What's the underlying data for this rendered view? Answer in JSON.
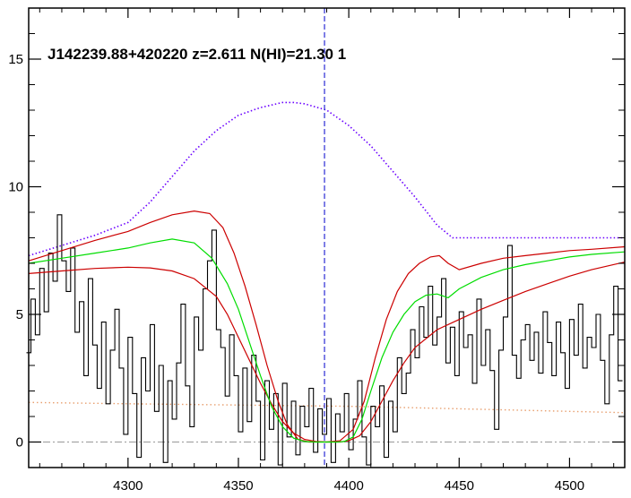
{
  "chart_data": {
    "type": "line",
    "title": "J142239.88+420220 z=2.611 N(HI)=21.30 1",
    "xlabel": "",
    "ylabel": "",
    "xlim": [
      4255,
      4525
    ],
    "ylim": [
      -1,
      17
    ],
    "grid": false,
    "x_ticks": [
      4300,
      4350,
      4400,
      4450,
      4500
    ],
    "y_ticks": [
      0,
      5,
      10,
      15
    ],
    "line_center": 4389,
    "colors": {
      "flux": "#000000",
      "model": "#00dd00",
      "model_bounds": "#cc0000",
      "continuum": "#6a00ff",
      "error": "#e8a070",
      "center": "#0000cc",
      "zero": "#999999"
    },
    "series": [
      {
        "kind": "flux",
        "x": [
          4255,
          4257,
          4259,
          4261,
          4263,
          4265,
          4267,
          4269,
          4271,
          4273,
          4275,
          4277,
          4279,
          4281,
          4283,
          4285,
          4287,
          4289,
          4291,
          4293,
          4295,
          4297,
          4299,
          4301,
          4303,
          4305,
          4307,
          4309,
          4311,
          4313,
          4315,
          4317,
          4319,
          4321,
          4323,
          4325,
          4327,
          4329,
          4331,
          4333,
          4335,
          4337,
          4339,
          4341,
          4343,
          4345,
          4347,
          4349,
          4351,
          4353,
          4355,
          4357,
          4359,
          4361,
          4363,
          4365,
          4367,
          4369,
          4371,
          4373,
          4375,
          4377,
          4379,
          4381,
          4383,
          4385,
          4387,
          4389,
          4391,
          4393,
          4395,
          4397,
          4399,
          4401,
          4403,
          4405,
          4407,
          4409,
          4411,
          4413,
          4415,
          4417,
          4419,
          4421,
          4423,
          4425,
          4427,
          4429,
          4431,
          4433,
          4435,
          4437,
          4439,
          4441,
          4443,
          4445,
          4447,
          4449,
          4451,
          4453,
          4455,
          4457,
          4459,
          4461,
          4463,
          4465,
          4467,
          4469,
          4471,
          4473,
          4475,
          4477,
          4479,
          4481,
          4483,
          4485,
          4487,
          4489,
          4491,
          4493,
          4495,
          4497,
          4499,
          4501,
          4503,
          4505,
          4507,
          4509,
          4511,
          4513,
          4515,
          4517,
          4519,
          4521,
          4523
        ],
        "y": [
          3.5,
          5.6,
          4.2,
          6.8,
          5.1,
          7.4,
          6.3,
          8.9,
          7.1,
          5.9,
          7.6,
          4.3,
          5.5,
          2.6,
          6.4,
          3.8,
          2.1,
          4.7,
          1.5,
          3.6,
          5.2,
          2.9,
          0.3,
          4.1,
          1.9,
          -0.6,
          3.3,
          2.0,
          4.6,
          1.2,
          3.0,
          -0.8,
          2.4,
          0.9,
          3.1,
          5.4,
          2.2,
          0.6,
          4.9,
          3.6,
          6.0,
          7.1,
          8.3,
          4.4,
          3.7,
          1.8,
          4.2,
          2.6,
          0.4,
          2.9,
          0.8,
          3.4,
          1.6,
          -0.7,
          2.4,
          0.5,
          1.9,
          -0.9,
          2.3,
          0.2,
          1.6,
          -0.5,
          1.4,
          0.6,
          2.1,
          -0.4,
          1.3,
          0.3,
          1.7,
          -0.8,
          1.1,
          0.4,
          1.9,
          -0.3,
          0.9,
          2.4,
          0.2,
          -0.9,
          1.4,
          0.6,
          2.2,
          -0.6,
          1.6,
          0.4,
          3.3,
          1.9,
          2.7,
          4.4,
          3.3,
          5.3,
          4.1,
          6.1,
          3.8,
          4.9,
          6.4,
          3.1,
          4.5,
          2.6,
          5.1,
          3.7,
          4.2,
          2.3,
          5.6,
          3.0,
          4.4,
          2.8,
          0.5,
          3.6,
          4.9,
          7.7,
          3.4,
          2.5,
          4.0,
          4.6,
          3.2,
          4.3,
          2.7,
          5.1,
          3.9,
          2.6,
          4.7,
          3.5,
          2.1,
          4.8,
          3.4,
          5.4,
          2.9,
          4.1,
          3.7,
          5.0,
          3.2,
          1.5,
          4.2,
          6.1,
          2.4
        ]
      },
      {
        "kind": "model",
        "x": [
          4255,
          4270,
          4285,
          4300,
          4310,
          4320,
          4330,
          4338,
          4345,
          4350,
          4355,
          4360,
          4365,
          4370,
          4375,
          4380,
          4385,
          4390,
          4395,
          4398,
          4402,
          4406,
          4410,
          4415,
          4420,
          4425,
          4430,
          4435,
          4440,
          4445,
          4450,
          4460,
          4470,
          4480,
          4490,
          4500,
          4510,
          4525
        ],
        "y": [
          7.0,
          7.2,
          7.4,
          7.6,
          7.8,
          7.95,
          7.8,
          7.2,
          6.2,
          5.2,
          3.9,
          2.6,
          1.4,
          0.6,
          0.15,
          0.02,
          0.0,
          0.0,
          0.0,
          0.02,
          0.2,
          0.9,
          2.0,
          3.3,
          4.3,
          5.0,
          5.5,
          5.75,
          5.8,
          5.65,
          6.0,
          6.45,
          6.75,
          6.95,
          7.1,
          7.25,
          7.35,
          7.45
        ]
      },
      {
        "kind": "model_bounds",
        "x": [
          4255,
          4270,
          4285,
          4300,
          4310,
          4320,
          4330,
          4337,
          4343,
          4348,
          4353,
          4358,
          4363,
          4368,
          4372,
          4377,
          4382,
          4390,
          4396,
          4402,
          4407,
          4412,
          4417,
          4422,
          4427,
          4432,
          4437,
          4441,
          4445,
          4450,
          4460,
          4470,
          4480,
          4490,
          4500,
          4510,
          4525
        ],
        "y": [
          7.1,
          7.5,
          7.9,
          8.25,
          8.6,
          8.9,
          9.05,
          8.95,
          8.4,
          7.4,
          6.1,
          4.6,
          3.0,
          1.6,
          0.7,
          0.1,
          0.0,
          0.0,
          0.05,
          0.5,
          1.6,
          3.3,
          4.8,
          5.9,
          6.6,
          7.0,
          7.25,
          7.3,
          7.0,
          6.75,
          7.0,
          7.2,
          7.3,
          7.4,
          7.5,
          7.55,
          7.65
        ]
      },
      {
        "kind": "model_bounds",
        "x": [
          4255,
          4270,
          4285,
          4300,
          4310,
          4320,
          4330,
          4340,
          4345,
          4350,
          4355,
          4360,
          4365,
          4370,
          4375,
          4380,
          4385,
          4390,
          4396,
          4400,
          4405,
          4410,
          4415,
          4420,
          4425,
          4430,
          4440,
          4450,
          4460,
          4470,
          4480,
          4490,
          4500,
          4510,
          4525
        ],
        "y": [
          6.6,
          6.7,
          6.8,
          6.85,
          6.82,
          6.7,
          6.4,
          5.7,
          5.0,
          4.1,
          3.2,
          2.3,
          1.5,
          0.8,
          0.35,
          0.1,
          0.02,
          0.0,
          0.0,
          0.05,
          0.25,
          0.8,
          1.6,
          2.4,
          3.1,
          3.7,
          4.4,
          4.8,
          5.2,
          5.55,
          5.9,
          6.2,
          6.5,
          6.75,
          7.05
        ]
      },
      {
        "kind": "continuum",
        "x": [
          4255,
          4270,
          4285,
          4300,
          4310,
          4320,
          4330,
          4340,
          4350,
          4360,
          4370,
          4375,
          4380,
          4390,
          4400,
          4410,
          4420,
          4430,
          4440,
          4447,
          4460,
          4480,
          4500,
          4525
        ],
        "y": [
          7.3,
          7.7,
          8.1,
          8.6,
          9.4,
          10.4,
          11.4,
          12.2,
          12.8,
          13.1,
          13.3,
          13.3,
          13.25,
          13.0,
          12.4,
          11.6,
          10.6,
          9.6,
          8.5,
          8.0,
          8.0,
          8.0,
          8.0,
          8.0
        ]
      },
      {
        "kind": "error",
        "x": [
          4255,
          4300,
          4350,
          4400,
          4450,
          4500,
          4525
        ],
        "y": [
          1.55,
          1.5,
          1.45,
          1.4,
          1.3,
          1.2,
          1.15
        ]
      }
    ]
  }
}
